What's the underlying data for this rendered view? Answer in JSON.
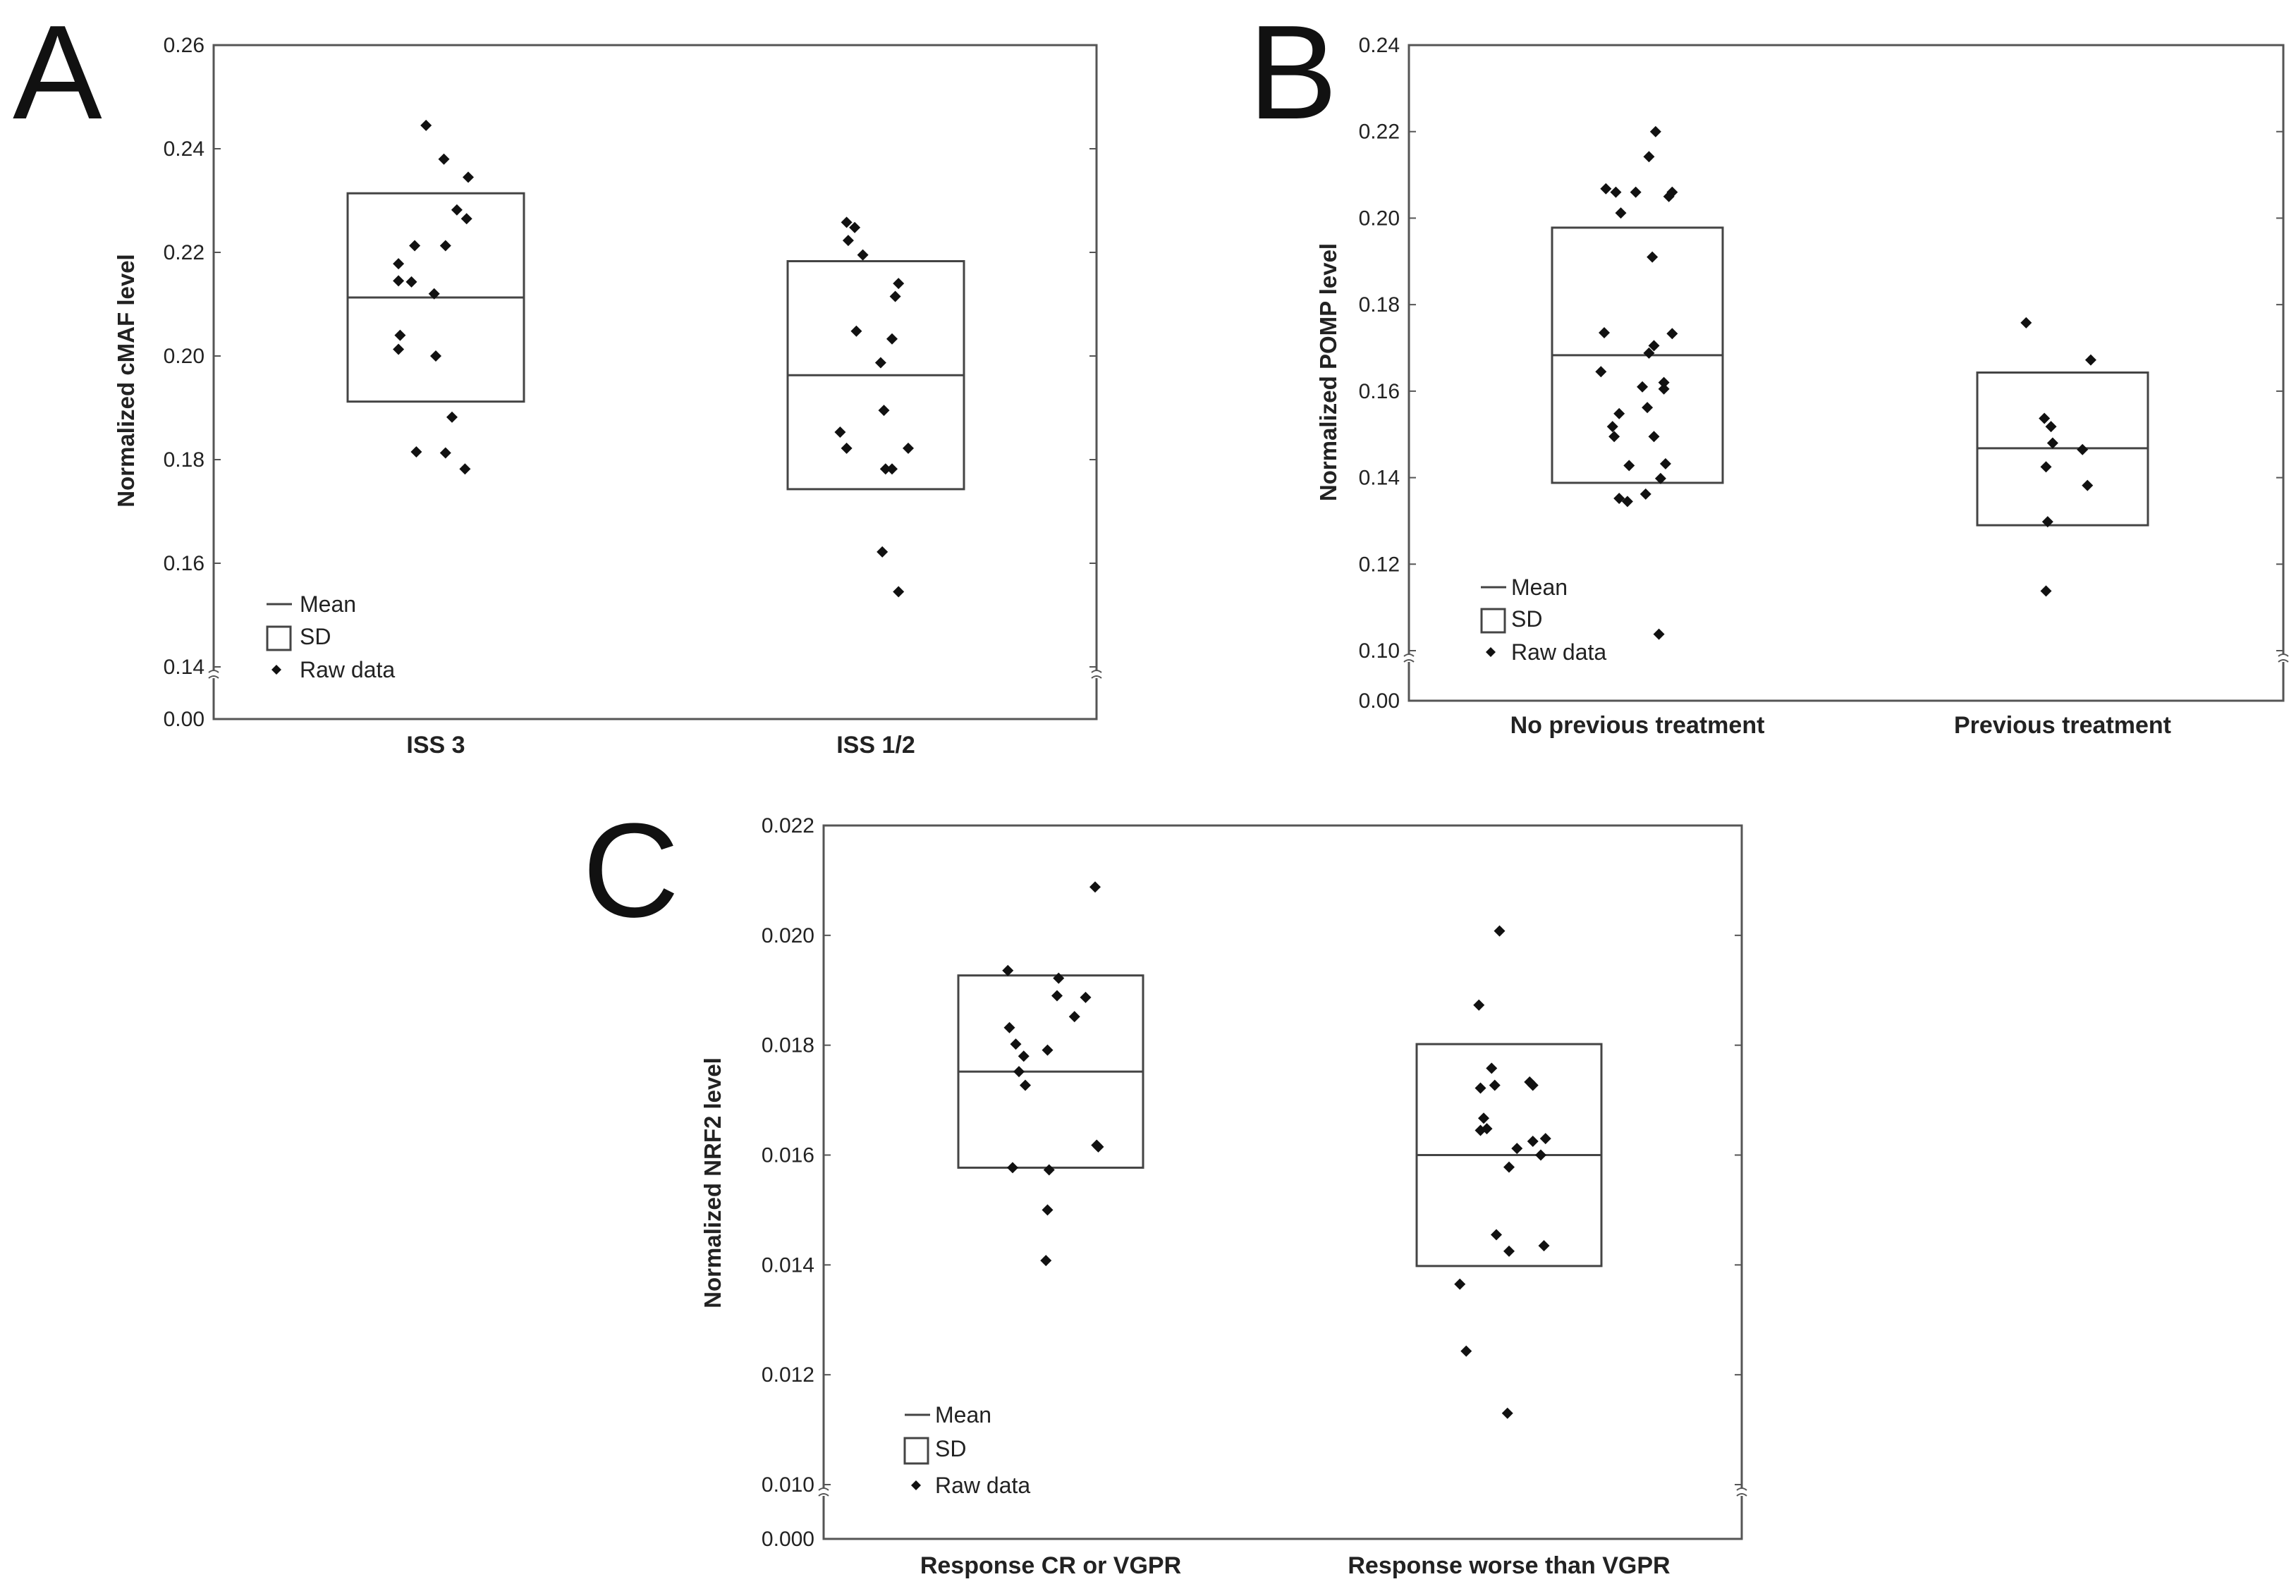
{
  "chart_data": [
    {
      "panel": "A",
      "type": "scatter",
      "ylabel": "Normalized cMAF level",
      "categories": [
        "ISS 3",
        "ISS 1/2"
      ],
      "yticks": [
        "0.00",
        "0.14",
        "0.16",
        "0.18",
        "0.20",
        "0.22",
        "0.24",
        "0.26"
      ],
      "ylim": [
        0.14,
        0.26
      ],
      "axis_break": true,
      "legend": {
        "mean": "Mean",
        "sd": "SD",
        "raw": "Raw data",
        "position": "bottom-left"
      },
      "series": [
        {
          "name": "ISS 3",
          "mean": 0.2113,
          "sd_low": 0.1912,
          "sd_high": 0.2314,
          "points": [
            [
              -0.06,
              0.2445
            ],
            [
              0.05,
              0.238
            ],
            [
              0.2,
              0.2345
            ],
            [
              0.13,
              0.2282
            ],
            [
              0.19,
              0.2265
            ],
            [
              -0.13,
              0.2213
            ],
            [
              0.06,
              0.2213
            ],
            [
              -0.23,
              0.2178
            ],
            [
              -0.23,
              0.2145
            ],
            [
              -0.15,
              0.2143
            ],
            [
              -0.01,
              0.212
            ],
            [
              -0.22,
              0.204
            ],
            [
              -0.23,
              0.2013
            ],
            [
              0.0,
              0.2
            ],
            [
              0.1,
              0.1882
            ],
            [
              -0.12,
              0.1815
            ],
            [
              0.06,
              0.1813
            ],
            [
              0.18,
              0.1782
            ]
          ]
        },
        {
          "name": "ISS 1/2",
          "mean": 0.1963,
          "sd_low": 0.1743,
          "sd_high": 0.2183,
          "points": [
            [
              -0.18,
              0.2258
            ],
            [
              -0.13,
              0.2248
            ],
            [
              -0.17,
              0.2223
            ],
            [
              -0.08,
              0.2195
            ],
            [
              0.14,
              0.214
            ],
            [
              0.12,
              0.2115
            ],
            [
              0.1,
              0.2033
            ],
            [
              -0.12,
              0.2048
            ],
            [
              0.03,
              0.1987
            ],
            [
              0.05,
              0.1895
            ],
            [
              -0.22,
              0.1853
            ],
            [
              -0.18,
              0.1822
            ],
            [
              0.2,
              0.1822
            ],
            [
              0.06,
              0.1782
            ],
            [
              0.1,
              0.1782
            ],
            [
              0.04,
              0.1622
            ],
            [
              0.14,
              0.1545
            ]
          ]
        }
      ]
    },
    {
      "panel": "B",
      "type": "scatter",
      "ylabel": "Normalized POMP level",
      "categories": [
        "No previous treatment",
        "Previous treatment"
      ],
      "yticks": [
        "0.00",
        "0.10",
        "0.12",
        "0.14",
        "0.16",
        "0.18",
        "0.20",
        "0.22",
        "0.24"
      ],
      "ylim": [
        0.1,
        0.24
      ],
      "axis_break": true,
      "legend": {
        "mean": "Mean",
        "sd": "SD",
        "raw": "Raw data",
        "position": "bottom-left"
      },
      "series": [
        {
          "name": "No previous treatment",
          "mean": 0.1683,
          "sd_low": 0.1388,
          "sd_high": 0.1978,
          "points": [
            [
              0.11,
              0.22
            ],
            [
              0.07,
              0.2142
            ],
            [
              -0.19,
              0.2068
            ],
            [
              -0.13,
              0.206
            ],
            [
              -0.01,
              0.206
            ],
            [
              0.21,
              0.206
            ],
            [
              0.19,
              0.205
            ],
            [
              -0.1,
              0.2012
            ],
            [
              0.09,
              0.191
            ],
            [
              -0.2,
              0.1735
            ],
            [
              0.21,
              0.1733
            ],
            [
              0.1,
              0.1705
            ],
            [
              0.07,
              0.1688
            ],
            [
              -0.22,
              0.1645
            ],
            [
              0.16,
              0.162
            ],
            [
              0.03,
              0.161
            ],
            [
              0.16,
              0.1605
            ],
            [
              0.06,
              0.1562
            ],
            [
              -0.11,
              0.1548
            ],
            [
              -0.15,
              0.1518
            ],
            [
              -0.14,
              0.1495
            ],
            [
              0.1,
              0.1495
            ],
            [
              -0.05,
              0.1428
            ],
            [
              0.17,
              0.1432
            ],
            [
              0.14,
              0.1398
            ],
            [
              -0.11,
              0.1352
            ],
            [
              -0.06,
              0.1345
            ],
            [
              0.05,
              0.1362
            ],
            [
              0.13,
              0.1038
            ]
          ]
        },
        {
          "name": "Previous treatment",
          "mean": 0.1468,
          "sd_low": 0.129,
          "sd_high": 0.1643,
          "points": [
            [
              -0.22,
              0.1758
            ],
            [
              0.17,
              0.1672
            ],
            [
              -0.11,
              0.1537
            ],
            [
              -0.07,
              0.1518
            ],
            [
              -0.06,
              0.148
            ],
            [
              0.12,
              0.1465
            ],
            [
              -0.1,
              0.1425
            ],
            [
              0.15,
              0.1382
            ],
            [
              -0.09,
              0.1298
            ],
            [
              -0.1,
              0.1138
            ]
          ]
        }
      ]
    },
    {
      "panel": "C",
      "type": "scatter",
      "ylabel": "Normalized NRF2 level",
      "categories": [
        "Response CR or VGPR",
        "Response worse than VGPR"
      ],
      "yticks": [
        "0.000",
        "0.010",
        "0.012",
        "0.014",
        "0.016",
        "0.018",
        "0.020",
        "0.022"
      ],
      "ylim": [
        0.01,
        0.022
      ],
      "axis_break": true,
      "legend": {
        "mean": "Mean",
        "sd": "SD",
        "raw": "Raw data",
        "position": "bottom-left"
      },
      "series": [
        {
          "name": "Response CR or VGPR",
          "mean": 0.01752,
          "sd_low": 0.01577,
          "sd_high": 0.01927,
          "points": [
            [
              0.28,
              0.02088
            ],
            [
              -0.27,
              0.01936
            ],
            [
              0.05,
              0.01922
            ],
            [
              0.22,
              0.01887
            ],
            [
              0.04,
              0.0189
            ],
            [
              -0.26,
              0.01832
            ],
            [
              0.15,
              0.01852
            ],
            [
              -0.22,
              0.01802
            ],
            [
              -0.17,
              0.0178
            ],
            [
              -0.02,
              0.01791
            ],
            [
              -0.2,
              0.01752
            ],
            [
              -0.16,
              0.01727
            ],
            [
              0.29,
              0.01618
            ],
            [
              0.3,
              0.01615
            ],
            [
              -0.24,
              0.01577
            ],
            [
              -0.01,
              0.01573
            ],
            [
              -0.02,
              0.015
            ],
            [
              -0.03,
              0.01408
            ]
          ]
        },
        {
          "name": "Response worse than VGPR",
          "mean": 0.016,
          "sd_low": 0.01398,
          "sd_high": 0.01802,
          "points": [
            [
              -0.06,
              0.02008
            ],
            [
              -0.19,
              0.01873
            ],
            [
              -0.11,
              0.01758
            ],
            [
              -0.18,
              0.01722
            ],
            [
              -0.09,
              0.01727
            ],
            [
              0.13,
              0.01733
            ],
            [
              0.15,
              0.01727
            ],
            [
              -0.16,
              0.01667
            ],
            [
              -0.18,
              0.01645
            ],
            [
              -0.14,
              0.01648
            ],
            [
              0.05,
              0.01612
            ],
            [
              0.15,
              0.01625
            ],
            [
              0.23,
              0.0163
            ],
            [
              0.2,
              0.016
            ],
            [
              0.0,
              0.01578
            ],
            [
              -0.08,
              0.01455
            ],
            [
              0.0,
              0.01425
            ],
            [
              0.22,
              0.01435
            ],
            [
              -0.31,
              0.01365
            ],
            [
              -0.27,
              0.01243
            ],
            [
              -0.01,
              0.0113
            ]
          ]
        }
      ]
    }
  ],
  "panel_letters": [
    "A",
    "B",
    "C"
  ]
}
